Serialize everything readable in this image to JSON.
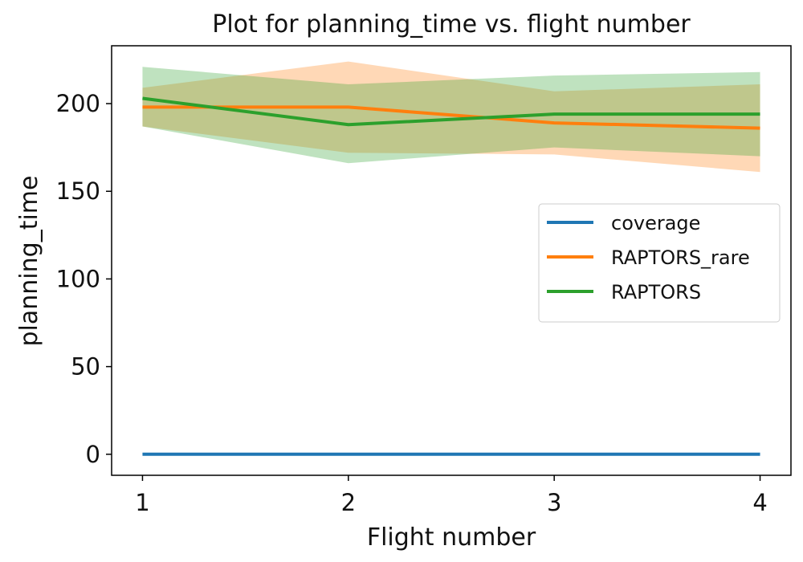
{
  "chart_data": {
    "type": "line",
    "title": "Plot for planning_time vs. flight number",
    "xlabel": "Flight number",
    "ylabel": "planning_time",
    "x": [
      1,
      2,
      3,
      4
    ],
    "x_ticks": [
      1,
      2,
      3,
      4
    ],
    "y_ticks": [
      0,
      50,
      100,
      150,
      200
    ],
    "xlim": [
      0.85,
      4.15
    ],
    "ylim": [
      -12,
      233
    ],
    "grid": false,
    "legend_position": "center-right",
    "series": [
      {
        "name": "coverage",
        "color": "#1f77b4",
        "values": [
          0,
          0,
          0,
          0
        ]
      },
      {
        "name": "RAPTORS_rare",
        "color": "#ff7f0e",
        "values": [
          198,
          198,
          189,
          186
        ],
        "band_lower": [
          187,
          172,
          171,
          161
        ],
        "band_upper": [
          209,
          224,
          207,
          211
        ]
      },
      {
        "name": "RAPTORS",
        "color": "#2ca02c",
        "values": [
          203,
          188,
          194,
          194
        ],
        "band_lower": [
          187,
          166,
          175,
          170
        ],
        "band_upper": [
          221,
          211,
          216,
          218
        ]
      }
    ]
  }
}
